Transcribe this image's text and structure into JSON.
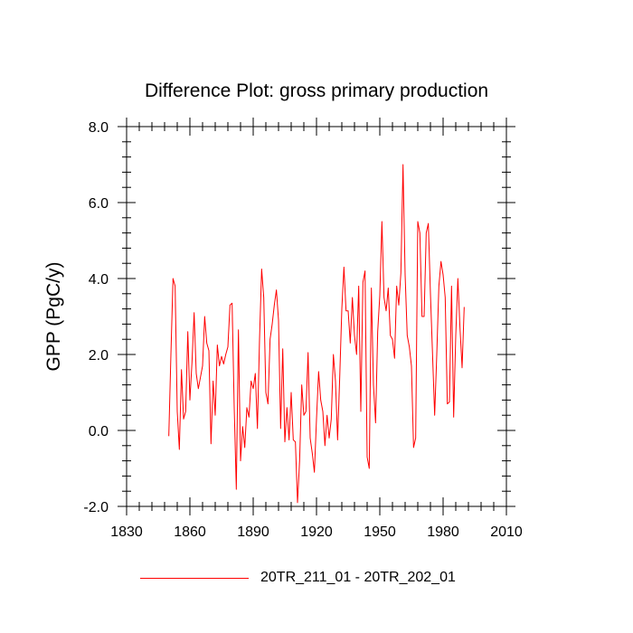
{
  "chart_data": {
    "type": "line",
    "title": "Difference Plot: gross primary production",
    "xlabel": "",
    "ylabel": "GPP  (PgC/y)",
    "xlim": [
      1830,
      2010
    ],
    "ylim": [
      -2.0,
      8.0
    ],
    "xticks": [
      1830,
      1860,
      1890,
      1920,
      1950,
      1980,
      2010
    ],
    "yticks": [
      -2.0,
      0.0,
      2.0,
      4.0,
      6.0,
      8.0
    ],
    "xtick_labels": [
      "1830",
      "1860",
      "1890",
      "1920",
      "1950",
      "1980",
      "2010"
    ],
    "ytick_labels": [
      "-2.0",
      "0.0",
      "2.0",
      "4.0",
      "6.0",
      "8.0"
    ],
    "grid": false,
    "legend_position": "bottom-center",
    "series": [
      {
        "name": "20TR_211_01 - 20TR_202_01",
        "color": "#ff0000",
        "x_start": 1850,
        "x_step": 1,
        "values": [
          -0.15,
          2.0,
          4.0,
          3.8,
          0.5,
          -0.5,
          1.6,
          0.3,
          0.5,
          2.6,
          0.8,
          1.8,
          3.1,
          1.5,
          1.1,
          1.4,
          1.7,
          3.0,
          2.3,
          2.1,
          -0.35,
          1.3,
          0.4,
          2.25,
          1.7,
          1.95,
          1.75,
          2.0,
          2.2,
          3.3,
          3.35,
          0.6,
          -1.55,
          2.65,
          -0.8,
          0.1,
          -0.45,
          0.6,
          0.35,
          1.3,
          1.1,
          1.5,
          0.05,
          2.4,
          4.25,
          3.5,
          1.0,
          0.7,
          2.4,
          2.8,
          3.3,
          3.7,
          2.9,
          0.05,
          2.15,
          -0.3,
          0.6,
          -0.25,
          1.0,
          -0.25,
          -0.3,
          -1.9,
          -0.8,
          1.2,
          0.4,
          0.5,
          2.05,
          -0.2,
          -0.6,
          -1.1,
          0.3,
          1.55,
          0.8,
          0.5,
          -0.4,
          0.4,
          -0.2,
          0.3,
          2.0,
          1.3,
          -0.25,
          1.4,
          3.2,
          4.3,
          3.15,
          3.15,
          2.3,
          3.5,
          2.5,
          2.0,
          3.8,
          0.5,
          3.9,
          4.2,
          -0.7,
          -1.0,
          3.75,
          1.2,
          0.2,
          2.6,
          3.55,
          5.5,
          3.5,
          3.15,
          3.75,
          2.5,
          2.4,
          1.9,
          3.8,
          3.3,
          4.15,
          7.0,
          4.1,
          2.5,
          2.2,
          1.7,
          -0.45,
          -0.2,
          5.5,
          5.2,
          3.0,
          3.0,
          5.2,
          5.45,
          3.6,
          2.0,
          0.4,
          2.0,
          3.8,
          4.45,
          4.1,
          3.5,
          0.7,
          0.75,
          3.8,
          0.35,
          2.5,
          4.0,
          2.7,
          1.65,
          3.25
        ]
      }
    ]
  }
}
